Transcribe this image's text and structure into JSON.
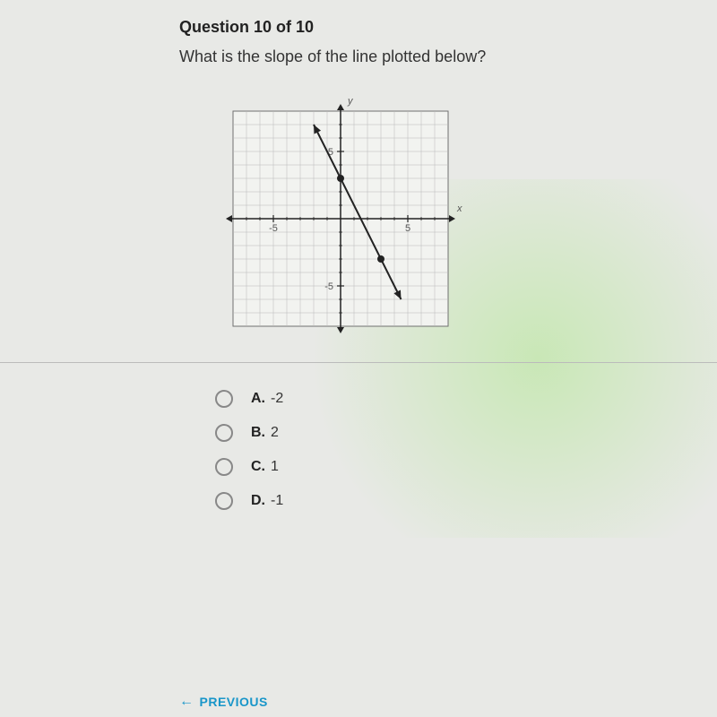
{
  "header": {
    "title": "Question 10 of 10"
  },
  "question": {
    "text": "What is the slope of the line plotted below?"
  },
  "chart": {
    "type": "line",
    "xmin": -8,
    "xmax": 8,
    "ymin": -8,
    "ymax": 8,
    "x_tick_neg": {
      "pos": -5,
      "label": "-5"
    },
    "x_tick_pos": {
      "pos": 5,
      "label": "5"
    },
    "y_tick_neg": {
      "pos": -5,
      "label": "-5"
    },
    "y_tick_pos": {
      "pos": 5,
      "label": "5"
    },
    "axis_x_label": "x",
    "axis_y_label": "y",
    "grid_color": "#b8b8b8",
    "border_color": "#707070",
    "axis_color": "#222222",
    "background_color": "#f2f3f0",
    "line_color": "#222222",
    "line_width": 2,
    "points": [
      {
        "x": 0,
        "y": 3
      },
      {
        "x": 3,
        "y": -3
      }
    ],
    "line_p1": {
      "x": -2,
      "y": 7
    },
    "line_p2": {
      "x": 4.5,
      "y": -6
    },
    "point_radius": 4,
    "point_fill": "#222222"
  },
  "options": [
    {
      "letter": "A.",
      "text": "-2"
    },
    {
      "letter": "B.",
      "text": "2"
    },
    {
      "letter": "C.",
      "text": "1"
    },
    {
      "letter": "D.",
      "text": "-1"
    }
  ],
  "footer": {
    "previous": "PREVIOUS"
  }
}
